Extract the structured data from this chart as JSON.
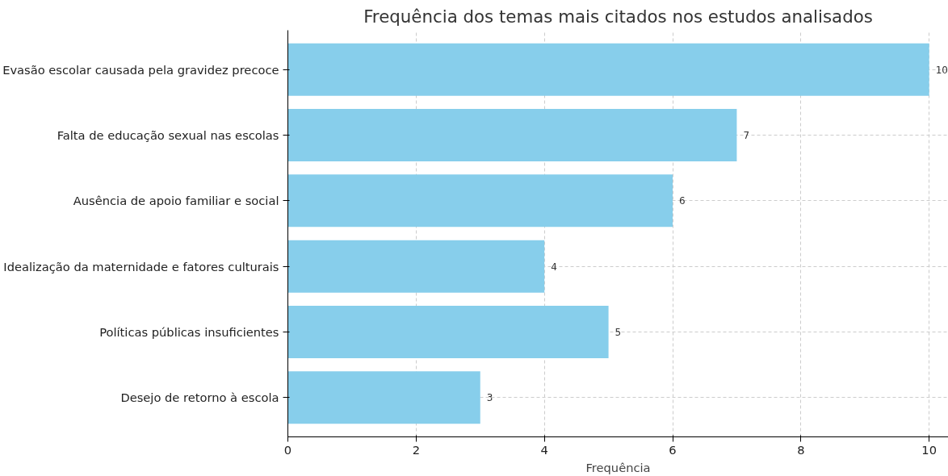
{
  "chart_data": {
    "type": "bar",
    "orientation": "horizontal",
    "title": "Frequência dos temas mais citados nos estudos analisados",
    "xlabel": "Frequência",
    "categories": [
      "Evasão escolar causada pela gravidez precoce",
      "Falta de educação sexual nas escolas",
      "Ausência de apoio familiar e social",
      "Idealização da maternidade e fatores culturais",
      "Políticas públicas insuficientes",
      "Desejo de retorno à escola"
    ],
    "values": [
      10,
      7,
      6,
      4,
      5,
      3
    ],
    "color": "#87ceeb",
    "xlim": [
      0,
      10.3
    ],
    "xticks": [
      0,
      2,
      4,
      6,
      8,
      10
    ],
    "grid": true,
    "data_labels": true
  }
}
